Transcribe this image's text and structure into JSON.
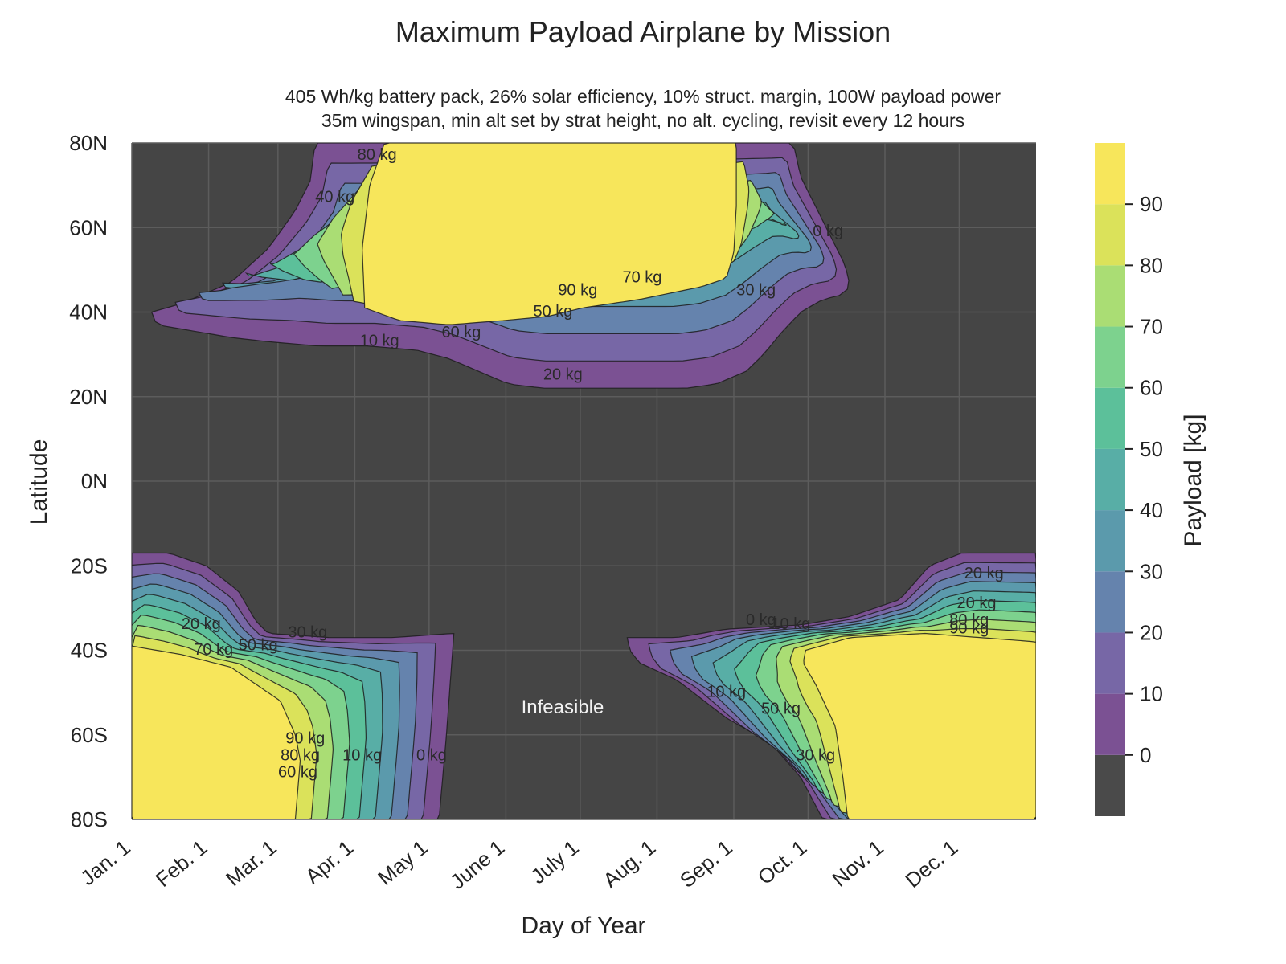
{
  "chart_data": {
    "type": "contour",
    "title": "Maximum Payload Airplane by Mission",
    "subtitle_lines": [
      "405 Wh/kg battery pack, 26% solar efficiency, 10% struct. margin, 100W payload power",
      "35m wingspan, min alt set by strat height, no alt. cycling, revisit every 12 hours"
    ],
    "xlabel": "Day of Year",
    "ylabel": "Latitude",
    "xlim": [
      0,
      365
    ],
    "ylim": [
      -80,
      80
    ],
    "x_ticks": [
      {
        "day": 0,
        "label": "Jan. 1"
      },
      {
        "day": 31,
        "label": "Feb. 1"
      },
      {
        "day": 59,
        "label": "Mar. 1"
      },
      {
        "day": 90,
        "label": "Apr. 1"
      },
      {
        "day": 120,
        "label": "May 1"
      },
      {
        "day": 151,
        "label": "June 1"
      },
      {
        "day": 181,
        "label": "July 1"
      },
      {
        "day": 212,
        "label": "Aug. 1"
      },
      {
        "day": 243,
        "label": "Sep. 1"
      },
      {
        "day": 273,
        "label": "Oct. 1"
      },
      {
        "day": 304,
        "label": "Nov. 1"
      },
      {
        "day": 334,
        "label": "Dec. 1"
      }
    ],
    "y_ticks": [
      {
        "lat": 80,
        "label": "80N"
      },
      {
        "lat": 60,
        "label": "60N"
      },
      {
        "lat": 40,
        "label": "40N"
      },
      {
        "lat": 20,
        "label": "20N"
      },
      {
        "lat": 0,
        "label": "0N"
      },
      {
        "lat": -20,
        "label": "20S"
      },
      {
        "lat": -40,
        "label": "40S"
      },
      {
        "lat": -60,
        "label": "60S"
      },
      {
        "lat": -80,
        "label": "80S"
      }
    ],
    "colorbar": {
      "label": "Payload [kg]",
      "ticks": [
        0,
        10,
        20,
        30,
        40,
        50,
        60,
        70,
        80,
        90
      ],
      "levels": [
        -10,
        0,
        10,
        20,
        30,
        40,
        50,
        60,
        70,
        80,
        90,
        100
      ],
      "colors": [
        "#4a4a4a",
        "#7b5193",
        "#7767a6",
        "#6583ad",
        "#5b9aac",
        "#58aea6",
        "#5cc09a",
        "#7dd28e",
        "#aadd74",
        "#dbe25a",
        "#f7e65b"
      ]
    },
    "infeasible_color": "#454545",
    "annotation": "Infeasible",
    "grid": true,
    "regions": [
      {
        "name": "northern",
        "envelope": [
          [
            8,
            40
          ],
          [
            20,
            42
          ],
          [
            40,
            47
          ],
          [
            55,
            55
          ],
          [
            66,
            64
          ],
          [
            72,
            71
          ],
          [
            74,
            80
          ],
          [
            267,
            80
          ],
          [
            270,
            72
          ],
          [
            276,
            65
          ],
          [
            282,
            58
          ],
          [
            288,
            51
          ],
          [
            290,
            46
          ],
          [
            286,
            44
          ],
          [
            279,
            43
          ],
          [
            270,
            40
          ],
          [
            262,
            35
          ],
          [
            255,
            30
          ],
          [
            248,
            26
          ],
          [
            236,
            23
          ],
          [
            224,
            22
          ],
          [
            210,
            22
          ],
          [
            195,
            22
          ],
          [
            182,
            22
          ],
          [
            166,
            22
          ],
          [
            152,
            23
          ],
          [
            140,
            26
          ],
          [
            128,
            29
          ],
          [
            115,
            31
          ],
          [
            95,
            32
          ],
          [
            75,
            32
          ],
          [
            55,
            33
          ],
          [
            40,
            34
          ],
          [
            20,
            36
          ],
          [
            10,
            37
          ]
        ],
        "core_90": [
          [
            94,
            41
          ],
          [
            108,
            38
          ],
          [
            128,
            37
          ],
          [
            150,
            38
          ],
          [
            168,
            39
          ],
          [
            182,
            41
          ],
          [
            205,
            43
          ],
          [
            230,
            46
          ],
          [
            240,
            48
          ],
          [
            243,
            54
          ],
          [
            244,
            65
          ],
          [
            244,
            80
          ],
          [
            102,
            80
          ],
          [
            96,
            70
          ],
          [
            93,
            55
          ]
        ],
        "contour_labels": [
          {
            "text": "90 kg",
            "day": 180,
            "lat": 44
          },
          {
            "text": "70 kg",
            "day": 206,
            "lat": 47
          },
          {
            "text": "50 kg",
            "day": 170,
            "lat": 39
          },
          {
            "text": "30 kg",
            "day": 252,
            "lat": 44
          },
          {
            "text": "10 kg",
            "day": 100,
            "lat": 32
          },
          {
            "text": "60 kg",
            "day": 133,
            "lat": 34
          },
          {
            "text": "20 kg",
            "day": 174,
            "lat": 24
          },
          {
            "text": "40 kg",
            "day": 82,
            "lat": 66
          },
          {
            "text": "80 kg",
            "day": 99,
            "lat": 76
          },
          {
            "text": "0 kg",
            "day": 281,
            "lat": 58
          }
        ]
      },
      {
        "name": "southern-early",
        "envelope": [
          [
            0,
            -17
          ],
          [
            15,
            -17
          ],
          [
            30,
            -20
          ],
          [
            43,
            -26
          ],
          [
            50,
            -33
          ],
          [
            55,
            -36
          ],
          [
            80,
            -37
          ],
          [
            105,
            -37
          ],
          [
            130,
            -36
          ],
          [
            127,
            -60
          ],
          [
            124,
            -80
          ],
          [
            0,
            -80
          ]
        ],
        "core_90": [
          [
            0,
            -39
          ],
          [
            20,
            -41
          ],
          [
            40,
            -44
          ],
          [
            60,
            -52
          ],
          [
            66,
            -60
          ],
          [
            68,
            -66
          ],
          [
            66,
            -80
          ],
          [
            0,
            -80
          ]
        ],
        "contour_labels": [
          {
            "text": "20 kg",
            "day": 28,
            "lat": -35
          },
          {
            "text": "30 kg",
            "day": 71,
            "lat": -37
          },
          {
            "text": "50 kg",
            "day": 51,
            "lat": -40
          },
          {
            "text": "70 kg",
            "day": 33,
            "lat": -41
          },
          {
            "text": "90 kg",
            "day": 70,
            "lat": -62
          },
          {
            "text": "80 kg",
            "day": 68,
            "lat": -66
          },
          {
            "text": "60 kg",
            "day": 67,
            "lat": -70
          },
          {
            "text": "10 kg",
            "day": 93,
            "lat": -66
          },
          {
            "text": "0 kg",
            "day": 121,
            "lat": -66
          }
        ]
      },
      {
        "name": "southern-late",
        "envelope": [
          [
            200,
            -37
          ],
          [
            220,
            -37
          ],
          [
            240,
            -35
          ],
          [
            270,
            -34
          ],
          [
            290,
            -32
          ],
          [
            310,
            -28
          ],
          [
            322,
            -20
          ],
          [
            335,
            -17
          ],
          [
            365,
            -17
          ],
          [
            365,
            -80
          ],
          [
            279,
            -80
          ],
          [
            270,
            -70
          ],
          [
            258,
            -62
          ],
          [
            240,
            -56
          ],
          [
            220,
            -47
          ],
          [
            205,
            -43
          ],
          [
            201,
            -40
          ]
        ],
        "core_90": [
          [
            272,
            -40
          ],
          [
            290,
            -37
          ],
          [
            320,
            -36
          ],
          [
            365,
            -38
          ],
          [
            365,
            -80
          ],
          [
            289,
            -80
          ],
          [
            287,
            -70
          ],
          [
            284,
            -58
          ],
          [
            276,
            -48
          ],
          [
            271,
            -43
          ]
        ],
        "contour_labels": [
          {
            "text": "0 kg",
            "day": 254,
            "lat": -34
          },
          {
            "text": "10 kg",
            "day": 266,
            "lat": -35
          },
          {
            "text": "20 kg",
            "day": 344,
            "lat": -23
          },
          {
            "text": "20 kg",
            "day": 341,
            "lat": -30
          },
          {
            "text": "80 kg",
            "day": 338,
            "lat": -34
          },
          {
            "text": "90 kg",
            "day": 338,
            "lat": -36
          },
          {
            "text": "10 kg",
            "day": 240,
            "lat": -51
          },
          {
            "text": "50 kg",
            "day": 262,
            "lat": -55
          },
          {
            "text": "30 kg",
            "day": 276,
            "lat": -66
          }
        ]
      }
    ]
  }
}
